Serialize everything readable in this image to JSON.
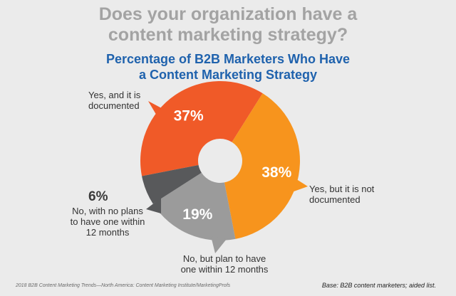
{
  "header": {
    "title_line1": "Does your organization have a",
    "title_line2": "content marketing strategy?",
    "subtitle_line1": "Percentage of B2B Marketers Who Have",
    "subtitle_line2": "a Content Marketing Strategy"
  },
  "chart_data": {
    "type": "pie",
    "title": "Percentage of B2B Marketers Who Have a Content Marketing Strategy",
    "donut": true,
    "slices": [
      {
        "label": "Yes, and it is documented",
        "value": 37,
        "display": "37%",
        "color": "#f05a28"
      },
      {
        "label": "Yes, but it is not documented",
        "value": 38,
        "display": "38%",
        "color": "#f7941d"
      },
      {
        "label": "No, but plan to have one within 12 months",
        "value": 19,
        "display": "19%",
        "color": "#9b9b9b"
      },
      {
        "label": "No, with no plans to have one within 12 months",
        "value": 6,
        "display": "6%",
        "color": "#58595b"
      }
    ]
  },
  "labels": {
    "documented": "Yes, and it is\ndocumented",
    "not_documented": "Yes, but it is not\ndocumented",
    "plan": "No, but plan to have\none within 12 months",
    "no_plans": "No, with no plans\nto have one within\n12 months"
  },
  "footer": {
    "source": "2018 B2B Content Marketing Trends—North America: Content Marketing Institute/MarketingProfs",
    "base": "Base: B2B content marketers; aided list."
  }
}
